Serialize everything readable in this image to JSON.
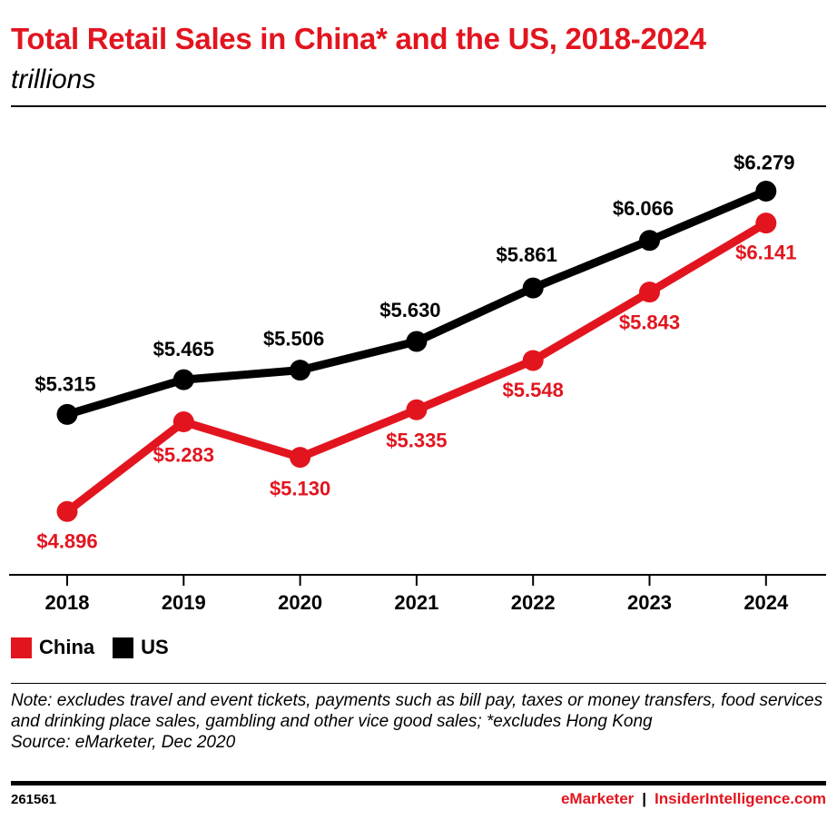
{
  "header": {
    "title": "Total Retail Sales in China* and the US, 2018-2024",
    "subtitle": "trillions"
  },
  "colors": {
    "china": "#e2151f",
    "us": "#000000",
    "brand_red": "#e2151f"
  },
  "chart_data": {
    "type": "line",
    "title": "Total Retail Sales in China* and the US, 2018-2024",
    "subtitle": "trillions",
    "categories": [
      "2018",
      "2019",
      "2020",
      "2021",
      "2022",
      "2023",
      "2024"
    ],
    "series": [
      {
        "name": "China",
        "color": "#e2151f",
        "values": [
          4.896,
          5.283,
          5.13,
          5.335,
          5.548,
          5.843,
          6.141
        ],
        "labels": [
          "$4.896",
          "$5.283",
          "$5.130",
          "$5.335",
          "$5.548",
          "$5.843",
          "$6.141"
        ]
      },
      {
        "name": "US",
        "color": "#000000",
        "values": [
          5.315,
          5.465,
          5.506,
          5.63,
          5.861,
          6.066,
          6.279
        ],
        "labels": [
          "$5.315",
          "$5.465",
          "$5.506",
          "$5.630",
          "$5.861",
          "$6.066",
          "$6.279"
        ]
      }
    ],
    "xlabel": "",
    "ylabel": "",
    "ylim": [
      4.85,
      6.32
    ],
    "grid": false,
    "legend": "bottom-left"
  },
  "legend": {
    "items": [
      {
        "label": "China",
        "color": "#e2151f"
      },
      {
        "label": "US",
        "color": "#000000"
      }
    ]
  },
  "notes": {
    "note": "Note: excludes travel and event tickets, payments such as bill pay, taxes or money transfers, food services and drinking place sales, gambling and other vice good sales; *excludes Hong Kong",
    "source": "Source: eMarketer, Dec 2020"
  },
  "footer": {
    "chart_id": "261561",
    "brand_a": "eMarketer",
    "separator": "|",
    "brand_b": "InsiderIntelligence.com"
  }
}
